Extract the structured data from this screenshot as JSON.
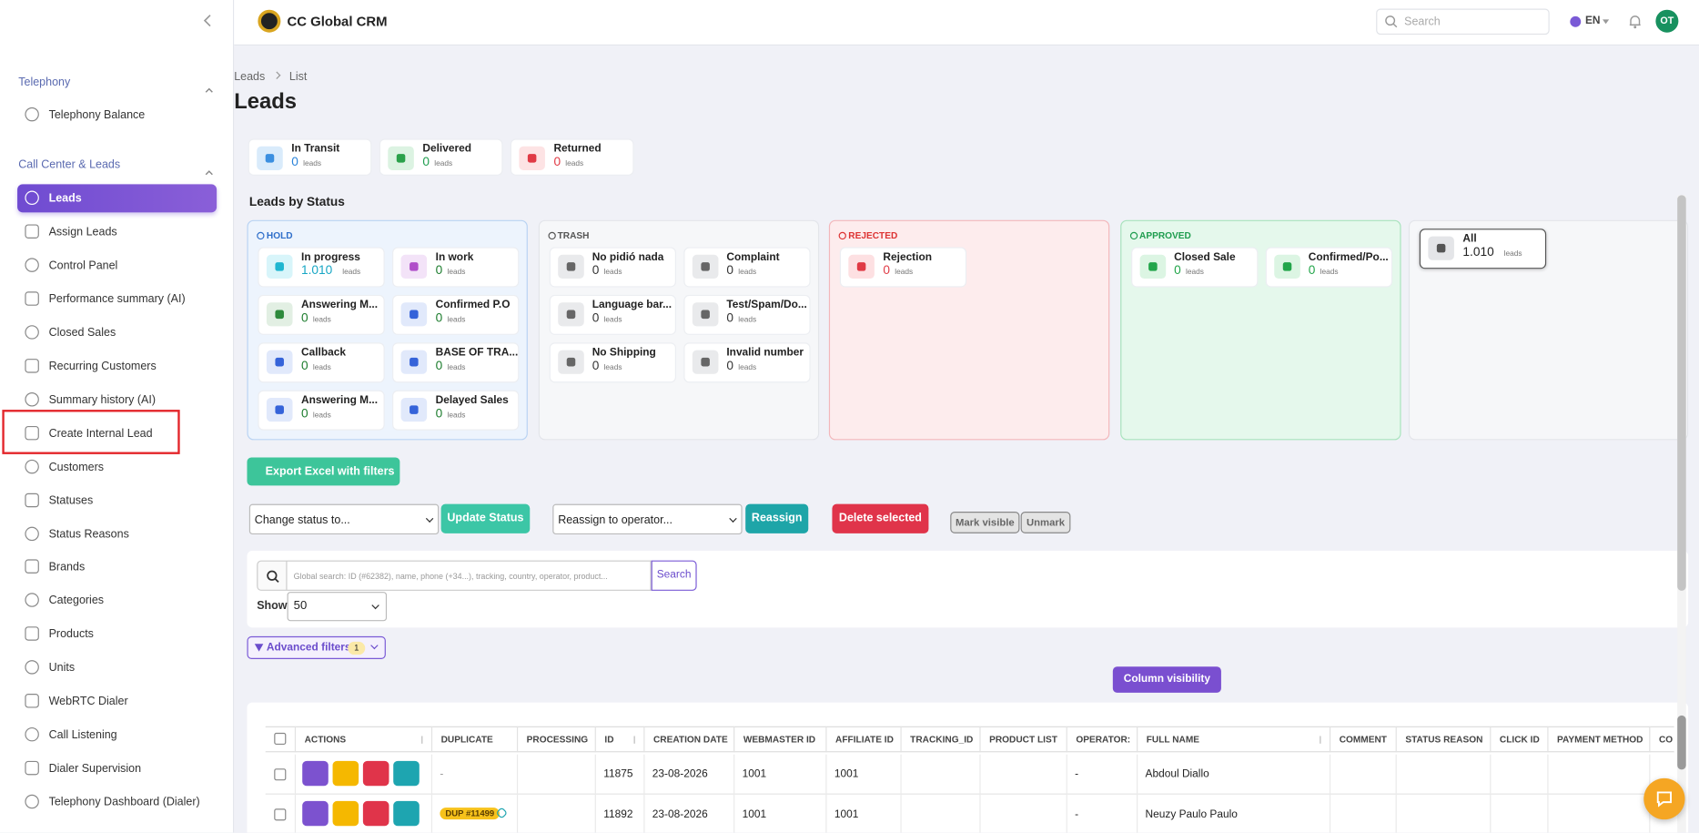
{
  "header": {
    "brand": "CC Global CRM",
    "search_placeholder": "Search",
    "language": "EN",
    "avatar": "OT"
  },
  "sidebar": {
    "sections": [
      {
        "title": "Telephony",
        "items": [
          "Telephony Balance"
        ]
      },
      {
        "title": "Call Center & Leads",
        "items": [
          "Leads",
          "Assign Leads",
          "Control Panel",
          "Performance summary (AI)",
          "Closed Sales",
          "Recurring Customers",
          "Summary history (AI)",
          "Create Internal Lead",
          "Customers",
          "Statuses",
          "Status Reasons",
          "Brands",
          "Categories",
          "Products",
          "Units",
          "WebRTC Dialer",
          "Call Listening",
          "Dialer Supervision",
          "Telephony Dashboard (Dialer)"
        ]
      }
    ]
  },
  "breadcrumb": [
    "Leads",
    "List"
  ],
  "page_title": "Leads",
  "summary_cards": [
    {
      "label": "In Transit",
      "value": "0",
      "unit": "leads"
    },
    {
      "label": "Delivered",
      "value": "0",
      "unit": "leads"
    },
    {
      "label": "Returned",
      "value": "0",
      "unit": "leads"
    }
  ],
  "status_heading": "Leads by Status",
  "status_groups": [
    {
      "title": "HOLD",
      "cards": [
        {
          "label": "In progress",
          "value": "1.010",
          "unit": "leads"
        },
        {
          "label": "In work",
          "value": "0",
          "unit": "leads"
        },
        {
          "label": "Answering M...",
          "value": "0",
          "unit": "leads"
        },
        {
          "label": "Confirmed P.O",
          "value": "0",
          "unit": "leads"
        },
        {
          "label": "Callback",
          "value": "0",
          "unit": "leads"
        },
        {
          "label": "BASE OF TRA...",
          "value": "0",
          "unit": "leads"
        },
        {
          "label": "Answering M...",
          "value": "0",
          "unit": "leads"
        },
        {
          "label": "Delayed Sales",
          "value": "0",
          "unit": "leads"
        }
      ]
    },
    {
      "title": "TRASH",
      "cards": [
        {
          "label": "No pidió nada",
          "value": "0",
          "unit": "leads"
        },
        {
          "label": "Complaint",
          "value": "0",
          "unit": "leads"
        },
        {
          "label": "Language bar...",
          "value": "0",
          "unit": "leads"
        },
        {
          "label": "Test/Spam/Do...",
          "value": "0",
          "unit": "leads"
        },
        {
          "label": "No Shipping",
          "value": "0",
          "unit": "leads"
        },
        {
          "label": "Invalid number",
          "value": "0",
          "unit": "leads"
        }
      ]
    },
    {
      "title": "REJECTED",
      "cards": [
        {
          "label": "Rejection",
          "value": "0",
          "unit": "leads"
        }
      ]
    },
    {
      "title": "APPROVED",
      "cards": [
        {
          "label": "Closed Sale",
          "value": "0",
          "unit": "leads"
        },
        {
          "label": "Confirmed/Po...",
          "value": "0",
          "unit": "leads"
        }
      ]
    }
  ],
  "all_card": {
    "label": "All",
    "value": "1.010",
    "unit": "leads"
  },
  "toolbar": {
    "export": "Export Excel with filters",
    "status_select": "Change status to...",
    "update": "Update Status",
    "operator_select": "Reassign to operator...",
    "reassign": "Reassign",
    "delete": "Delete selected",
    "mark_visible": "Mark visible",
    "unmark": "Unmark"
  },
  "search": {
    "placeholder": "Global search: ID (#62382), name, phone (+34...), tracking, country, operator, product...",
    "button": "Search",
    "show_label": "Show",
    "show_value": "50",
    "advanced": "Advanced filters",
    "advanced_count": "1",
    "column_visibility": "Column visibility"
  },
  "table": {
    "columns": [
      "ACTIONS",
      "DUPLICATE",
      "PROCESSING",
      "ID",
      "CREATION DATE",
      "WEBMASTER ID",
      "AFFILIATE ID",
      "TRACKING_ID",
      "PRODUCT LIST",
      "OPERATOR:",
      "FULL NAME",
      "COMMENT",
      "STATUS REASON",
      "CLICK ID",
      "PAYMENT METHOD",
      "CO"
    ],
    "rows": [
      {
        "duplicate": "-",
        "id": "11875",
        "creation_date": "23-08-2026",
        "webmaster_id": "1001",
        "affiliate_id": "1001",
        "operator": "-",
        "full_name": "Abdoul Diallo"
      },
      {
        "duplicate": "DUP #11499",
        "id": "11892",
        "creation_date": "23-08-2026",
        "webmaster_id": "1001",
        "affiliate_id": "1001",
        "operator": "-",
        "full_name": "Neuzy Paulo Paulo"
      }
    ]
  }
}
